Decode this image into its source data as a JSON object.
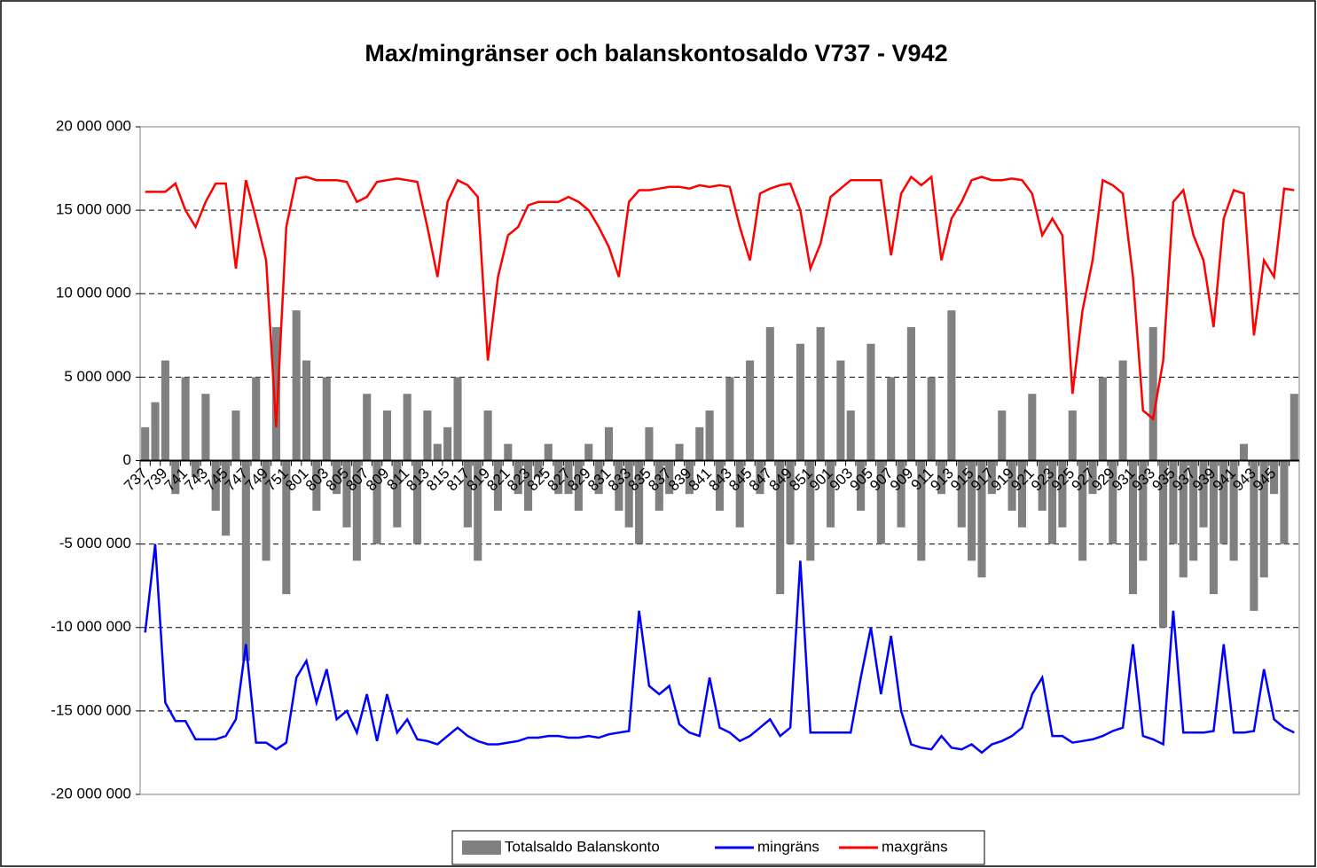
{
  "chart_data": {
    "type": "bar_line",
    "title": "Max/mingränser och balanskontosaldo V737 - V942",
    "categories": [
      "737",
      null,
      "739",
      null,
      "741",
      null,
      "743",
      null,
      "745",
      null,
      "747",
      null,
      "749",
      null,
      "751",
      null,
      "801",
      null,
      "803",
      null,
      "805",
      null,
      "807",
      null,
      "809",
      null,
      "811",
      null,
      "813",
      null,
      "815",
      null,
      "817",
      null,
      "819",
      null,
      "821",
      null,
      "823",
      null,
      "825",
      null,
      "827",
      null,
      "829",
      null,
      "831",
      null,
      "833",
      null,
      "835",
      null,
      "837",
      null,
      "839",
      null,
      "841",
      null,
      "843",
      null,
      "845",
      null,
      "847",
      null,
      "849",
      null,
      "851",
      null,
      "901",
      null,
      "903",
      null,
      "905",
      null,
      "907",
      null,
      "909",
      null,
      "911",
      null,
      "913",
      null,
      "915",
      null,
      "917",
      null,
      "919",
      null,
      "921",
      null,
      "923",
      null,
      "925",
      null,
      "927",
      null,
      "929",
      null,
      "931",
      null,
      "933",
      null,
      "935",
      null,
      "937",
      null,
      "939",
      null,
      "941",
      null,
      "943",
      null,
      "945",
      null,
      null
    ],
    "series": [
      {
        "name": "Totalsaldo Balanskonto",
        "kind": "bar",
        "color": "#808080",
        "values": [
          2000000,
          3500000,
          6000000,
          -2000000,
          5000000,
          -1000000,
          4000000,
          -3000000,
          -4500000,
          3000000,
          -12000000,
          5000000,
          -6000000,
          8000000,
          -8000000,
          9000000,
          6000000,
          -3000000,
          5000000,
          -2000000,
          -4000000,
          -6000000,
          4000000,
          -5000000,
          3000000,
          -4000000,
          4000000,
          -5000000,
          3000000,
          1000000,
          2000000,
          5000000,
          -4000000,
          -6000000,
          3000000,
          -3000000,
          1000000,
          -2000000,
          -3000000,
          -1000000,
          1000000,
          -2000000,
          -2000000,
          -3000000,
          1000000,
          -2000000,
          2000000,
          -3000000,
          -4000000,
          -5000000,
          2000000,
          -3000000,
          -2000000,
          1000000,
          -2000000,
          2000000,
          3000000,
          -3000000,
          5000000,
          -4000000,
          6000000,
          -2000000,
          8000000,
          -8000000,
          -5000000,
          7000000,
          -6000000,
          8000000,
          -4000000,
          6000000,
          3000000,
          -3000000,
          7000000,
          -5000000,
          5000000,
          -4000000,
          8000000,
          -6000000,
          5000000,
          -2000000,
          9000000,
          -4000000,
          -6000000,
          -7000000,
          -2000000,
          3000000,
          -3000000,
          -4000000,
          4000000,
          -3000000,
          -5000000,
          -4000000,
          3000000,
          -6000000,
          -2000000,
          5000000,
          -5000000,
          6000000,
          -8000000,
          -6000000,
          8000000,
          -10000000,
          -5000000,
          -7000000,
          -6000000,
          -4000000,
          -8000000,
          -5000000,
          -6000000,
          1000000,
          -9000000,
          -7000000,
          -2000000,
          -5000000,
          4000000
        ]
      },
      {
        "name": "mingräns",
        "kind": "line",
        "color": "#0000ff",
        "values": [
          -10300000,
          -5000000,
          -14500000,
          -15600000,
          -15600000,
          -16700000,
          -16700000,
          -16700000,
          -16500000,
          -15500000,
          -11000000,
          -16900000,
          -16900000,
          -17300000,
          -16900000,
          -13000000,
          -12000000,
          -14500000,
          -12500000,
          -15500000,
          -15000000,
          -16300000,
          -14000000,
          -16800000,
          -14000000,
          -16300000,
          -15500000,
          -16700000,
          -16800000,
          -17000000,
          -16500000,
          -16000000,
          -16500000,
          -16800000,
          -17000000,
          -17000000,
          -16900000,
          -16800000,
          -16600000,
          -16600000,
          -16500000,
          -16500000,
          -16600000,
          -16600000,
          -16500000,
          -16600000,
          -16400000,
          -16300000,
          -16200000,
          -9000000,
          -13500000,
          -14000000,
          -13500000,
          -15800000,
          -16300000,
          -16500000,
          -13000000,
          -16000000,
          -16300000,
          -16800000,
          -16500000,
          -16000000,
          -15500000,
          -16500000,
          -16000000,
          -6000000,
          -16300000,
          -16300000,
          -16300000,
          -16300000,
          -16300000,
          -13000000,
          -10000000,
          -14000000,
          -10500000,
          -15000000,
          -17000000,
          -17200000,
          -17300000,
          -16500000,
          -17200000,
          -17300000,
          -17000000,
          -17500000,
          -17000000,
          -16800000,
          -16500000,
          -16000000,
          -14000000,
          -13000000,
          -16500000,
          -16500000,
          -16900000,
          -16800000,
          -16700000,
          -16500000,
          -16200000,
          -16000000,
          -11000000,
          -16500000,
          -16700000,
          -17000000,
          -9000000,
          -16300000,
          -16300000,
          -16300000,
          -16200000,
          -11000000,
          -16300000,
          -16300000,
          -16200000,
          -12500000,
          -15500000,
          -16000000,
          -16300000
        ]
      },
      {
        "name": "maxgräns",
        "kind": "line",
        "color": "#ff0000",
        "values": [
          16100000,
          16100000,
          16100000,
          16600000,
          15000000,
          14000000,
          15500000,
          16600000,
          16600000,
          11500000,
          16800000,
          14500000,
          12000000,
          2000000,
          14000000,
          16900000,
          17000000,
          16800000,
          16800000,
          16800000,
          16700000,
          15500000,
          15800000,
          16700000,
          16800000,
          16900000,
          16800000,
          16700000,
          14000000,
          11000000,
          15500000,
          16800000,
          16500000,
          15800000,
          6000000,
          11000000,
          13500000,
          14000000,
          15300000,
          15500000,
          15500000,
          15500000,
          15800000,
          15500000,
          15000000,
          14000000,
          12800000,
          11000000,
          15500000,
          16200000,
          16200000,
          16300000,
          16400000,
          16400000,
          16300000,
          16500000,
          16400000,
          16500000,
          16400000,
          14000000,
          12000000,
          16000000,
          16300000,
          16500000,
          16600000,
          15000000,
          11500000,
          13000000,
          15800000,
          16300000,
          16800000,
          16800000,
          16800000,
          16800000,
          12300000,
          16000000,
          17000000,
          16500000,
          17000000,
          12000000,
          14500000,
          15500000,
          16800000,
          17000000,
          16800000,
          16800000,
          16900000,
          16800000,
          16000000,
          13500000,
          14500000,
          13500000,
          4000000,
          9000000,
          12000000,
          16800000,
          16500000,
          16000000,
          11000000,
          3000000,
          2500000,
          6000000,
          15500000,
          16200000,
          13500000,
          12000000,
          8000000,
          14500000,
          16200000,
          16000000,
          7500000,
          12000000,
          11000000,
          16300000,
          16200000
        ]
      }
    ],
    "ylim": [
      -20000000,
      20000000
    ],
    "yticks": [
      {
        "value": -20000000,
        "label": "-20 000 000"
      },
      {
        "value": -15000000,
        "label": "-15 000 000"
      },
      {
        "value": -10000000,
        "label": "-10 000 000"
      },
      {
        "value": -5000000,
        "label": "-5 000 000"
      },
      0,
      {
        "value": 5000000,
        "label": "5 000 000"
      },
      {
        "value": 10000000,
        "label": "10 000 000"
      },
      {
        "value": 15000000,
        "label": "15 000 000"
      },
      {
        "value": 20000000,
        "label": "20 000 000"
      }
    ],
    "grid": true,
    "legend": "bottom"
  }
}
